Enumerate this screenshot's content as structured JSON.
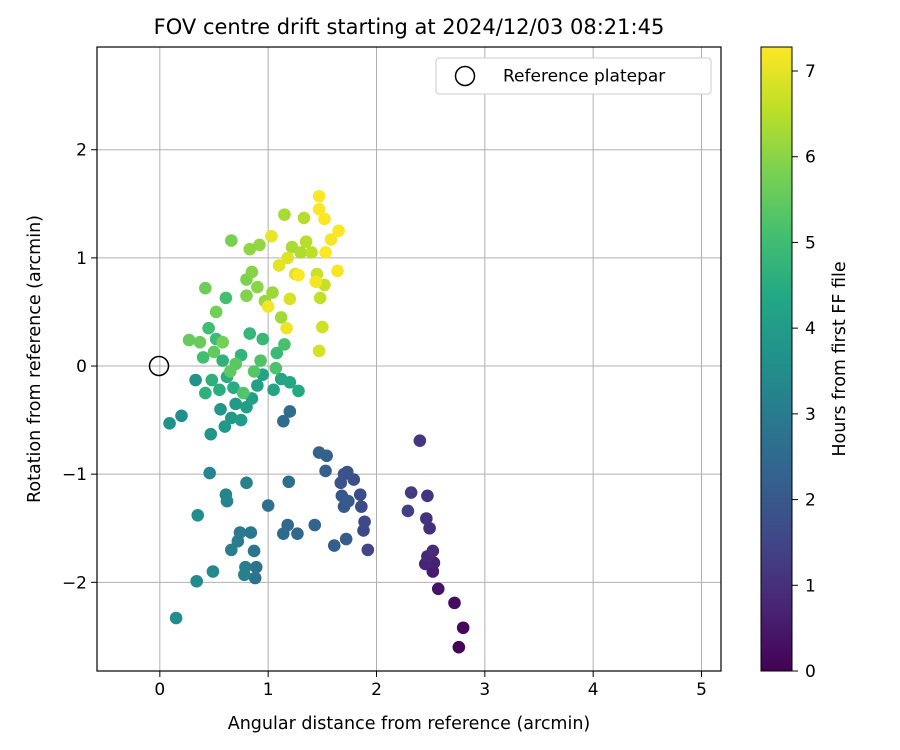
{
  "chart_data": {
    "type": "scatter",
    "title": "FOV centre drift starting at 2024/12/03 08:21:45",
    "xlabel": "Angular distance from reference (arcmin)",
    "ylabel": "Rotation from reference (arcmin)",
    "xlim": [
      -0.58,
      5.18
    ],
    "ylim": [
      -2.82,
      2.95
    ],
    "xticks": [
      0,
      1,
      2,
      3,
      4,
      5
    ],
    "xtick_labels": [
      "0",
      "1",
      "2",
      "3",
      "4",
      "5"
    ],
    "yticks": [
      -2,
      -1,
      0,
      1,
      2
    ],
    "ytick_labels": [
      "−2",
      "−1",
      "0",
      "1",
      "2"
    ],
    "grid": true,
    "legend": {
      "position": "top-right",
      "entries": [
        "Reference platepar"
      ]
    },
    "reference_point": {
      "label": "Reference platepar",
      "x": 0,
      "y": 0
    },
    "colorbar": {
      "label": "Hours from first FF file",
      "colormap": "viridis",
      "range": [
        0,
        7.28
      ],
      "ticks": [
        0,
        1,
        2,
        3,
        4,
        5,
        6,
        7
      ],
      "tick_labels": [
        "0",
        "1",
        "2",
        "3",
        "4",
        "5",
        "6",
        "7"
      ]
    },
    "series": [
      {
        "points": [
          {
            "x": 2.76,
            "y": -2.6,
            "h": 0.05
          },
          {
            "x": 2.8,
            "y": -2.42,
            "h": 0.15
          },
          {
            "x": 2.72,
            "y": -2.19,
            "h": 0.25
          },
          {
            "x": 2.57,
            "y": -2.06,
            "h": 0.4
          },
          {
            "x": 2.52,
            "y": -1.9,
            "h": 0.55
          },
          {
            "x": 2.53,
            "y": -1.82,
            "h": 0.65
          },
          {
            "x": 2.45,
            "y": -1.83,
            "h": 0.75
          },
          {
            "x": 2.47,
            "y": -1.76,
            "h": 0.85
          },
          {
            "x": 2.52,
            "y": -1.71,
            "h": 0.9
          },
          {
            "x": 2.49,
            "y": -1.5,
            "h": 1.0
          },
          {
            "x": 2.46,
            "y": -1.41,
            "h": 1.05
          },
          {
            "x": 2.47,
            "y": -1.2,
            "h": 1.1
          },
          {
            "x": 2.4,
            "y": -0.69,
            "h": 1.15
          },
          {
            "x": 2.32,
            "y": -1.17,
            "h": 1.25
          },
          {
            "x": 2.29,
            "y": -1.34,
            "h": 1.35
          },
          {
            "x": 1.92,
            "y": -1.7,
            "h": 1.45
          },
          {
            "x": 1.88,
            "y": -1.52,
            "h": 1.55
          },
          {
            "x": 1.89,
            "y": -1.44,
            "h": 1.6
          },
          {
            "x": 1.86,
            "y": -1.3,
            "h": 1.65
          },
          {
            "x": 1.85,
            "y": -1.19,
            "h": 1.7
          },
          {
            "x": 1.79,
            "y": -1.05,
            "h": 1.75
          },
          {
            "x": 1.73,
            "y": -0.98,
            "h": 1.8
          },
          {
            "x": 1.7,
            "y": -1.0,
            "h": 1.85
          },
          {
            "x": 1.67,
            "y": -1.08,
            "h": 1.9
          },
          {
            "x": 1.68,
            "y": -1.2,
            "h": 1.95
          },
          {
            "x": 1.7,
            "y": -1.3,
            "h": 2.0
          },
          {
            "x": 1.74,
            "y": -1.25,
            "h": 2.05
          },
          {
            "x": 1.72,
            "y": -1.6,
            "h": 2.1
          },
          {
            "x": 1.61,
            "y": -1.66,
            "h": 2.15
          },
          {
            "x": 1.53,
            "y": -0.97,
            "h": 2.2
          },
          {
            "x": 1.54,
            "y": -0.83,
            "h": 2.25
          },
          {
            "x": 1.47,
            "y": -0.8,
            "h": 2.3
          },
          {
            "x": 1.43,
            "y": -1.47,
            "h": 2.35
          },
          {
            "x": 1.27,
            "y": -1.55,
            "h": 2.4
          },
          {
            "x": 1.18,
            "y": -1.47,
            "h": 2.45
          },
          {
            "x": 1.14,
            "y": -1.55,
            "h": 2.5
          },
          {
            "x": 1.14,
            "y": -0.51,
            "h": 2.55
          },
          {
            "x": 1.2,
            "y": -0.42,
            "h": 2.6
          },
          {
            "x": 1.19,
            "y": -1.07,
            "h": 2.65
          },
          {
            "x": 1.0,
            "y": -1.29,
            "h": 2.7
          },
          {
            "x": 0.88,
            "y": -1.96,
            "h": 2.75
          },
          {
            "x": 0.89,
            "y": -1.86,
            "h": 2.8
          },
          {
            "x": 0.87,
            "y": -1.71,
            "h": 2.85
          },
          {
            "x": 0.84,
            "y": -1.54,
            "h": 2.9
          },
          {
            "x": 0.74,
            "y": -1.54,
            "h": 2.95
          },
          {
            "x": 0.72,
            "y": -1.62,
            "h": 3.0
          },
          {
            "x": 0.66,
            "y": -1.7,
            "h": 3.05
          },
          {
            "x": 0.79,
            "y": -1.86,
            "h": 3.1
          },
          {
            "x": 0.78,
            "y": -1.93,
            "h": 3.15
          },
          {
            "x": 0.8,
            "y": -1.08,
            "h": 3.2
          },
          {
            "x": 0.61,
            "y": -1.19,
            "h": 3.25
          },
          {
            "x": 0.62,
            "y": -1.25,
            "h": 3.3
          },
          {
            "x": 0.46,
            "y": -0.99,
            "h": 3.35
          },
          {
            "x": 0.49,
            "y": -1.9,
            "h": 3.4
          },
          {
            "x": 0.34,
            "y": -1.99,
            "h": 3.45
          },
          {
            "x": 0.35,
            "y": -1.38,
            "h": 3.5
          },
          {
            "x": 0.15,
            "y": -2.33,
            "h": 3.55
          },
          {
            "x": 0.2,
            "y": -0.46,
            "h": 3.6
          },
          {
            "x": 0.09,
            "y": -0.53,
            "h": 3.65
          },
          {
            "x": 0.33,
            "y": -0.13,
            "h": 3.7
          },
          {
            "x": 0.47,
            "y": -0.63,
            "h": 3.75
          },
          {
            "x": 0.56,
            "y": -0.4,
            "h": 3.8
          },
          {
            "x": 0.6,
            "y": -0.56,
            "h": 3.85
          },
          {
            "x": 0.66,
            "y": -0.48,
            "h": 3.9
          },
          {
            "x": 0.7,
            "y": -0.35,
            "h": 3.95
          },
          {
            "x": 0.75,
            "y": -0.5,
            "h": 4.0
          },
          {
            "x": 0.8,
            "y": -0.38,
            "h": 4.05
          },
          {
            "x": 0.85,
            "y": -0.3,
            "h": 4.1
          },
          {
            "x": 0.9,
            "y": -0.18,
            "h": 4.15
          },
          {
            "x": 0.95,
            "y": -0.08,
            "h": 4.2
          },
          {
            "x": 1.05,
            "y": -0.22,
            "h": 4.25
          },
          {
            "x": 1.12,
            "y": -0.12,
            "h": 4.3
          },
          {
            "x": 1.2,
            "y": -0.15,
            "h": 4.35
          },
          {
            "x": 1.28,
            "y": -0.23,
            "h": 4.4
          },
          {
            "x": 0.68,
            "y": -0.2,
            "h": 4.45
          },
          {
            "x": 0.62,
            "y": -0.1,
            "h": 4.5
          },
          {
            "x": 0.55,
            "y": -0.22,
            "h": 4.55
          },
          {
            "x": 0.48,
            "y": -0.13,
            "h": 4.6
          },
          {
            "x": 0.42,
            "y": -0.25,
            "h": 4.65
          },
          {
            "x": 0.58,
            "y": 0.05,
            "h": 4.7
          },
          {
            "x": 0.75,
            "y": 0.1,
            "h": 4.75
          },
          {
            "x": 0.83,
            "y": 0.3,
            "h": 4.8
          },
          {
            "x": 0.95,
            "y": 0.25,
            "h": 4.85
          },
          {
            "x": 1.08,
            "y": 0.12,
            "h": 4.9
          },
          {
            "x": 0.52,
            "y": 0.25,
            "h": 4.95
          },
          {
            "x": 0.45,
            "y": 0.35,
            "h": 5.0
          },
          {
            "x": 0.4,
            "y": 0.08,
            "h": 5.05
          },
          {
            "x": 0.61,
            "y": 0.63,
            "h": 5.1
          },
          {
            "x": 1.15,
            "y": 0.2,
            "h": 5.15
          },
          {
            "x": 1.07,
            "y": -0.02,
            "h": 5.2
          },
          {
            "x": 0.93,
            "y": 0.05,
            "h": 5.25
          },
          {
            "x": 0.77,
            "y": -0.25,
            "h": 5.3
          },
          {
            "x": 0.87,
            "y": -0.05,
            "h": 5.35
          },
          {
            "x": 0.7,
            "y": 0.02,
            "h": 5.4
          },
          {
            "x": 0.65,
            "y": -0.05,
            "h": 5.45
          },
          {
            "x": 0.5,
            "y": 0.13,
            "h": 5.5
          },
          {
            "x": 0.27,
            "y": 0.24,
            "h": 5.55
          },
          {
            "x": 0.37,
            "y": 0.22,
            "h": 5.6
          },
          {
            "x": 0.42,
            "y": 0.72,
            "h": 5.65
          },
          {
            "x": 0.52,
            "y": 0.5,
            "h": 5.7
          },
          {
            "x": 0.58,
            "y": 0.22,
            "h": 5.75
          },
          {
            "x": 0.66,
            "y": 1.16,
            "h": 5.8
          },
          {
            "x": 0.8,
            "y": 0.8,
            "h": 5.85
          },
          {
            "x": 0.8,
            "y": 0.65,
            "h": 5.9
          },
          {
            "x": 0.85,
            "y": 0.87,
            "h": 5.95
          },
          {
            "x": 0.9,
            "y": 0.73,
            "h": 6.0
          },
          {
            "x": 0.83,
            "y": 1.08,
            "h": 6.05
          },
          {
            "x": 0.92,
            "y": 1.12,
            "h": 6.1
          },
          {
            "x": 0.97,
            "y": 0.6,
            "h": 6.15
          },
          {
            "x": 1.04,
            "y": 0.68,
            "h": 6.2
          },
          {
            "x": 1.12,
            "y": 0.45,
            "h": 6.25
          },
          {
            "x": 1.15,
            "y": 1.4,
            "h": 6.3
          },
          {
            "x": 1.22,
            "y": 1.1,
            "h": 6.35
          },
          {
            "x": 1.3,
            "y": 1.05,
            "h": 6.4
          },
          {
            "x": 1.33,
            "y": 1.37,
            "h": 6.45
          },
          {
            "x": 1.35,
            "y": 1.15,
            "h": 6.5
          },
          {
            "x": 1.4,
            "y": 1.05,
            "h": 6.55
          },
          {
            "x": 1.48,
            "y": 0.63,
            "h": 6.6
          },
          {
            "x": 1.52,
            "y": 0.75,
            "h": 6.65
          },
          {
            "x": 1.45,
            "y": 0.85,
            "h": 6.7
          },
          {
            "x": 1.5,
            "y": 0.36,
            "h": 6.75
          },
          {
            "x": 1.47,
            "y": 0.14,
            "h": 6.8
          },
          {
            "x": 1.2,
            "y": 0.62,
            "h": 6.85
          },
          {
            "x": 1.25,
            "y": 0.85,
            "h": 6.9
          },
          {
            "x": 1.18,
            "y": 1.0,
            "h": 6.95
          },
          {
            "x": 1.1,
            "y": 0.93,
            "h": 7.0
          },
          {
            "x": 1.03,
            "y": 1.2,
            "h": 7.05
          },
          {
            "x": 1.17,
            "y": 0.35,
            "h": 7.1
          },
          {
            "x": 1.0,
            "y": 0.55,
            "h": 7.15
          },
          {
            "x": 1.44,
            "y": 0.78,
            "h": 7.18
          },
          {
            "x": 1.58,
            "y": 1.17,
            "h": 7.2
          },
          {
            "x": 1.64,
            "y": 0.88,
            "h": 7.22
          },
          {
            "x": 1.65,
            "y": 1.25,
            "h": 7.24
          },
          {
            "x": 1.52,
            "y": 1.36,
            "h": 7.25
          },
          {
            "x": 1.47,
            "y": 1.45,
            "h": 7.26
          },
          {
            "x": 1.47,
            "y": 1.57,
            "h": 7.27
          },
          {
            "x": 1.53,
            "y": 1.05,
            "h": 7.27
          },
          {
            "x": 1.28,
            "y": 0.84,
            "h": 7.27
          }
        ]
      }
    ]
  }
}
